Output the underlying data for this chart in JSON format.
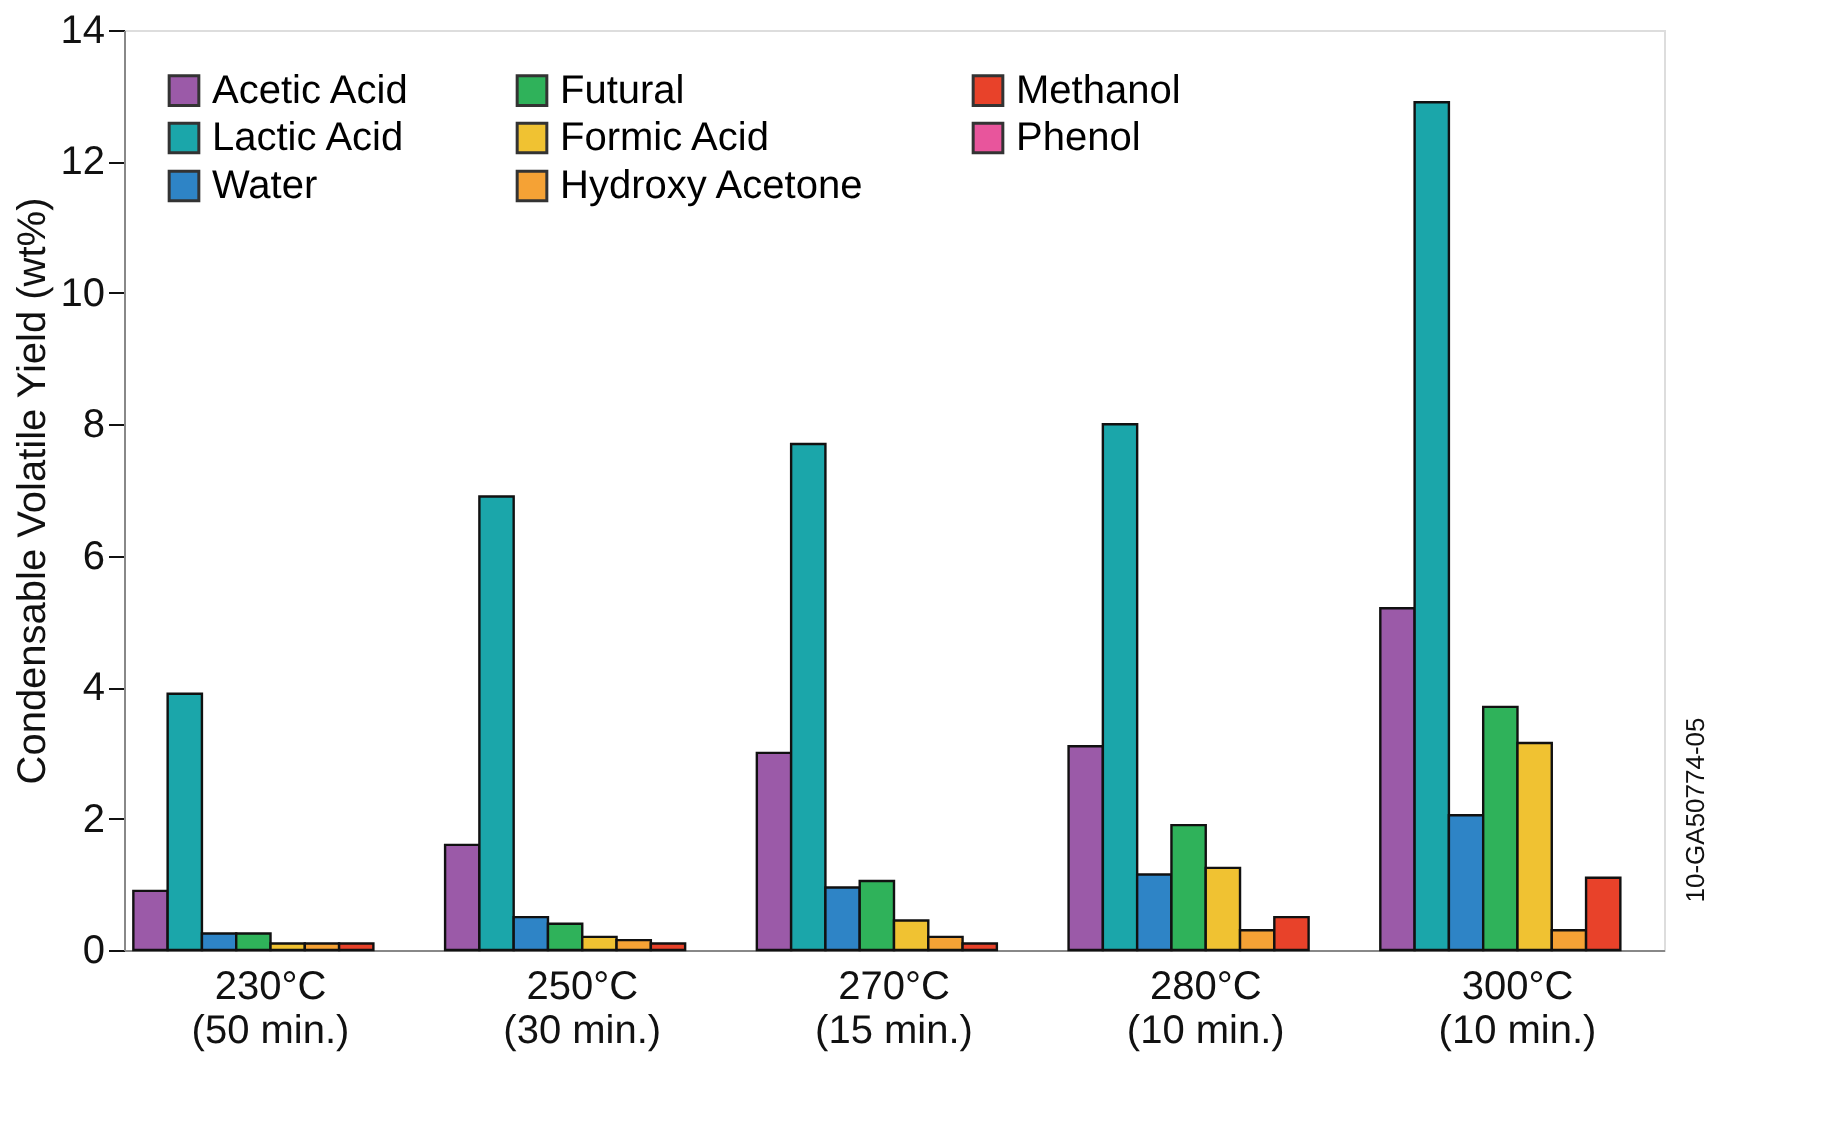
{
  "chart_data": {
    "type": "bar",
    "ylabel": "Condensable Volatile Yield (wt%)",
    "categories": [
      "230°C\n(50 min.)",
      "250°C\n(30 min.)",
      "270°C\n(15 min.)",
      "280°C\n(10 min.)",
      "300°C\n(10 min.)"
    ],
    "series": [
      {
        "name": "Acetic Acid",
        "color": "#9b5aa8",
        "values": [
          0.9,
          1.6,
          3.0,
          3.1,
          5.2
        ]
      },
      {
        "name": "Lactic Acid",
        "color": "#1ba6aa",
        "values": [
          3.9,
          6.9,
          7.7,
          8.0,
          12.9
        ]
      },
      {
        "name": "Water",
        "color": "#2e84c6",
        "values": [
          0.25,
          0.5,
          0.95,
          1.15,
          2.05
        ]
      },
      {
        "name": "Futural",
        "color": "#2fb25a",
        "values": [
          0.25,
          0.4,
          1.05,
          1.9,
          3.7
        ]
      },
      {
        "name": "Formic Acid",
        "color": "#f0c232",
        "values": [
          0.1,
          0.2,
          0.45,
          1.25,
          3.15
        ]
      },
      {
        "name": "Hydroxy Acetone",
        "color": "#f5a235",
        "values": [
          0.1,
          0.15,
          0.2,
          0.3,
          0.3
        ]
      },
      {
        "name": "Methanol",
        "color": "#e8422a",
        "values": [
          0.1,
          0.1,
          0.1,
          0.5,
          1.1
        ]
      },
      {
        "name": "Phenol",
        "color": "#e8559c",
        "values": [
          null,
          null,
          null,
          null,
          null
        ]
      }
    ],
    "ylim": [
      0,
      14
    ],
    "yticks": [
      0,
      2,
      4,
      6,
      8,
      10,
      12,
      14
    ],
    "grid": false,
    "legend": "top left",
    "annotations": [
      "10-GA50774-05"
    ]
  }
}
